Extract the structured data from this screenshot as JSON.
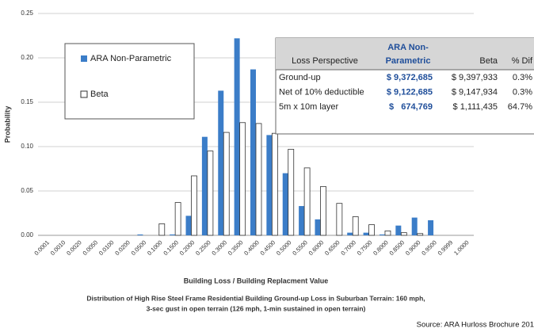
{
  "chart_data": {
    "type": "bar",
    "categories": [
      "0.0001",
      "0.0010",
      "0.0020",
      "0.0050",
      "0.0100",
      "0.0200",
      "0.0500",
      "0.1000",
      "0.1500",
      "0.2000",
      "0.2500",
      "0.3000",
      "0.3500",
      "0.4000",
      "0.4500",
      "0.5000",
      "0.5500",
      "0.6000",
      "0.6500",
      "0.7000",
      "0.7500",
      "0.8000",
      "0.8500",
      "0.9000",
      "0.9500",
      "0.9999",
      "1.0000"
    ],
    "series": [
      {
        "name": "ARA Non-Parametric",
        "color": "#3b7dc8",
        "values": [
          0,
          0,
          0,
          0,
          0,
          0,
          0.001,
          0,
          0.001,
          0.022,
          0.111,
          0.163,
          0.222,
          0.187,
          0.113,
          0.07,
          0.033,
          0.018,
          0,
          0.003,
          0.003,
          0.001,
          0.011,
          0.02,
          0.017,
          0,
          0
        ]
      },
      {
        "name": "Beta",
        "color": "#ffffff",
        "values": [
          0,
          0,
          0,
          0,
          0,
          0,
          0,
          0.013,
          0.037,
          0.067,
          0.095,
          0.116,
          0.127,
          0.126,
          0.115,
          0.097,
          0.076,
          0.055,
          0.036,
          0.021,
          0.012,
          0.005,
          0.003,
          0.002,
          0,
          0,
          0
        ]
      }
    ],
    "ylim": [
      0,
      0.25
    ],
    "yticks": [
      {
        "value": 0,
        "label": "0.00"
      },
      0.05,
      {
        "value": 0.1,
        "label": "0.10"
      },
      0.15,
      {
        "value": 0.2,
        "label": "0.20"
      },
      0.25
    ],
    "grid": true,
    "y_label": "Probability",
    "x_label": "Building Loss / Building Replacment Value"
  },
  "table": {
    "header": [
      "Loss Perspective",
      [
        "ARA Non-",
        "Parametric"
      ],
      "Beta",
      "% Dif"
    ],
    "rows": [
      [
        "Ground-up",
        "$ 9,372,685",
        "$ 9,397,933",
        "0.3%"
      ],
      [
        "Net of 10% deductible",
        "$ 9,122,685",
        "$ 9,147,934",
        "0.3%"
      ],
      [
        "5m x 10m layer",
        "$   674,769",
        "$ 1,111,435",
        "64.7%"
      ]
    ]
  },
  "caption": [
    "Distribution of High Rise Steel Frame Residential Building Ground-up Loss in Suburban Terrain: 160 mph,",
    "3-sec gust in open terrain (126 mph, 1-min sustained in open terrain)"
  ],
  "source": "Source:  ARA Hurloss Brochure 201"
}
